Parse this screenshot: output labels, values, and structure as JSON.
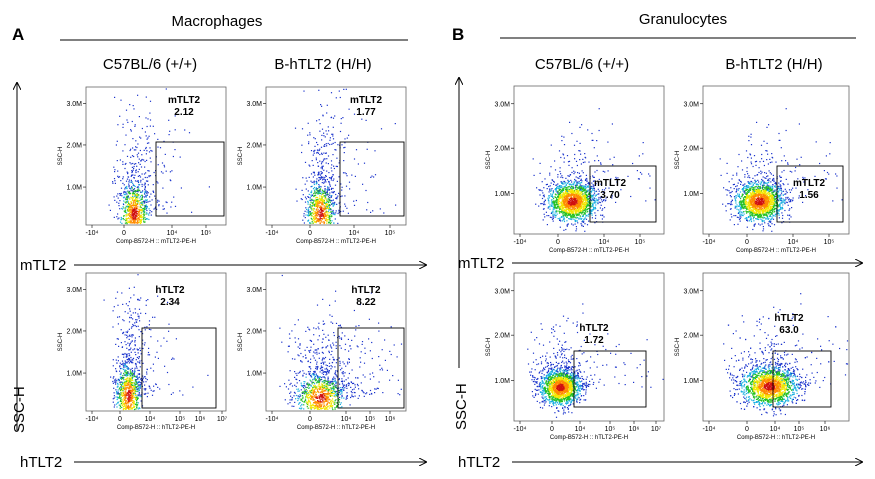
{
  "figure": {
    "panels": [
      {
        "letter": "A",
        "title": "Macrophages"
      },
      {
        "letter": "B",
        "title": "Granulocytes"
      }
    ],
    "column_headers": [
      "C57BL/6 (+/+)",
      "B-hTLT2 (H/H)",
      "C57BL/6 (+/+)",
      "B-hTLT2 (H/H)"
    ],
    "big_axes": {
      "vertical": "SSC-H",
      "row1_horizontal": "mTLT2",
      "row2_horizontal": "hTLT2"
    }
  },
  "chart_data": [
    {
      "type": "scatter",
      "panel": "A",
      "row": "mTLT2",
      "column": "C57BL/6 (+/+)",
      "gate": {
        "name": "mTLT2",
        "value": "2.12"
      },
      "xlabel": "Comp-B572-H :: mTLT2-PE-H",
      "ylabel": "SSC-H",
      "xticks": [
        "-10⁴",
        "0",
        "10⁴",
        "10⁵"
      ],
      "yticks": [
        "1.0M",
        "2.0M",
        "3.0M"
      ],
      "population": {
        "center_x": "0",
        "center_y": "0.3M",
        "shape": "vertical smear"
      }
    },
    {
      "type": "scatter",
      "panel": "A",
      "row": "mTLT2",
      "column": "B-hTLT2 (H/H)",
      "gate": {
        "name": "mTLT2",
        "value": "1.77"
      },
      "xlabel": "Comp-B572-H :: mTLT2-PE-H",
      "ylabel": "SSC-H",
      "xticks": [
        "-10⁴",
        "0",
        "10⁴",
        "10⁵"
      ],
      "yticks": [
        "1.0M",
        "2.0M",
        "3.0M"
      ],
      "population": {
        "center_x": "0",
        "center_y": "0.3M",
        "shape": "vertical smear"
      }
    },
    {
      "type": "scatter",
      "panel": "A",
      "row": "hTLT2",
      "column": "C57BL/6 (+/+)",
      "gate": {
        "name": "hTLT2",
        "value": "2.34"
      },
      "xlabel": "Comp-B572-H :: hTLT2-PE-H",
      "ylabel": "SSC-H",
      "xticks": [
        "-10⁴",
        "0",
        "10⁴",
        "10⁵",
        "10⁶",
        "10⁷"
      ],
      "yticks": [
        "1.0M",
        "2.0M",
        "3.0M"
      ],
      "population": {
        "center_x": "0",
        "center_y": "0.4M",
        "shape": "vertical smear"
      }
    },
    {
      "type": "scatter",
      "panel": "A",
      "row": "hTLT2",
      "column": "B-hTLT2 (H/H)",
      "gate": {
        "name": "hTLT2",
        "value": "8.22"
      },
      "xlabel": "Comp-B572-H :: hTLT2-PE-H",
      "ylabel": "SSC-H",
      "xticks": [
        "-10⁴",
        "0",
        "10⁴",
        "10⁵",
        "10⁶"
      ],
      "yticks": [
        "1.0M",
        "2.0M",
        "3.0M"
      ],
      "population": {
        "center_x": "0 to 10⁴",
        "center_y": "0.4M",
        "shape": "wide smear"
      }
    },
    {
      "type": "scatter",
      "panel": "B",
      "row": "mTLT2",
      "column": "C57BL/6 (+/+)",
      "gate": {
        "name": "mTLT2",
        "value": "3.70"
      },
      "xlabel": "Comp-B572-H :: mTLT2-PE-H",
      "ylabel": "SSC-H",
      "xticks": [
        "-10⁴",
        "0",
        "10⁴",
        "10⁵"
      ],
      "yticks": [
        "1.0M",
        "2.0M",
        "3.0M"
      ],
      "population": {
        "center_x": "0",
        "center_y": "0.65M",
        "shape": "dense ellipse"
      }
    },
    {
      "type": "scatter",
      "panel": "B",
      "row": "mTLT2",
      "column": "B-hTLT2 (H/H)",
      "gate": {
        "name": "mTLT2",
        "value": "1.56"
      },
      "xlabel": "Comp-B572-H :: mTLT2-PE-H",
      "ylabel": "SSC-H",
      "xticks": [
        "-10⁴",
        "0",
        "10⁴",
        "10⁵"
      ],
      "yticks": [
        "1.0M",
        "2.0M",
        "3.0M"
      ],
      "population": {
        "center_x": "0",
        "center_y": "0.65M",
        "shape": "dense ellipse"
      }
    },
    {
      "type": "scatter",
      "panel": "B",
      "row": "hTLT2",
      "column": "C57BL/6 (+/+)",
      "gate": {
        "name": "hTLT2",
        "value": "1.72"
      },
      "xlabel": "Comp-B572-H :: hTLT2-PE-H",
      "ylabel": "SSC-H",
      "xticks": [
        "-10⁴",
        "0",
        "10⁴",
        "10⁵",
        "10⁶",
        "10⁷"
      ],
      "yticks": [
        "1.0M",
        "2.0M",
        "3.0M"
      ],
      "population": {
        "center_x": "0",
        "center_y": "0.65M",
        "shape": "dense ellipse"
      }
    },
    {
      "type": "scatter",
      "panel": "B",
      "row": "hTLT2",
      "column": "B-hTLT2 (H/H)",
      "gate": {
        "name": "hTLT2",
        "value": "63.0"
      },
      "xlabel": "Comp-B572-H :: hTLT2-PE-H",
      "ylabel": "SSC-H",
      "xticks": [
        "-10⁴",
        "0",
        "10⁴",
        "10⁵",
        "10⁶"
      ],
      "yticks": [
        "1.0M",
        "2.0M",
        "3.0M"
      ],
      "population": {
        "center_x": "10⁴",
        "center_y": "0.65M",
        "shape": "dense ellipse shifted right"
      }
    }
  ]
}
